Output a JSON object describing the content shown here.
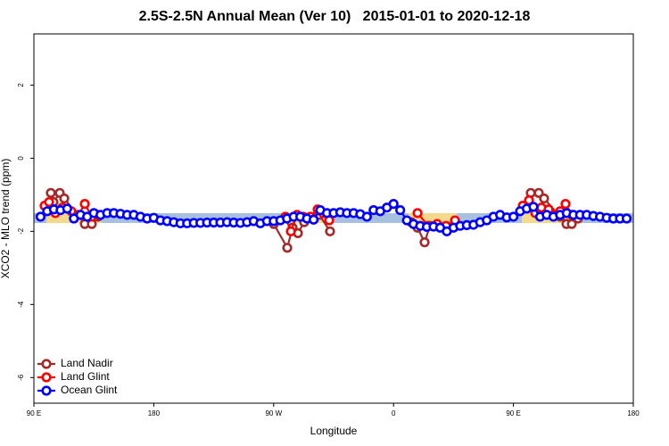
{
  "chart_data": {
    "type": "line",
    "title": "2.5S-2.5N Annual Mean (Ver 10)   2015-01-01 to 2020-12-18",
    "xlabel": "Longitude",
    "ylabel": "XCO2 - MLO trend (ppm)",
    "xlim": [
      90,
      540
    ],
    "ylim": [
      -6.7,
      3.4
    ],
    "xticks": [
      {
        "value": 90,
        "label": "90 E"
      },
      {
        "value": 180,
        "label": "180"
      },
      {
        "value": 270,
        "label": "90 W"
      },
      {
        "value": 360,
        "label": "0"
      },
      {
        "value": 450,
        "label": "90 E"
      },
      {
        "value": 540,
        "label": "180"
      }
    ],
    "yticks": [
      -6,
      -4,
      -2,
      0,
      2
    ],
    "legend": "bottom-left",
    "series": [
      {
        "name": "Land Nadir",
        "color": "#a52a2a",
        "x": [
          100,
          102.7,
          104.7,
          109.4,
          112.8,
          128.2,
          133.5,
          138.2,
          null,
          270.1,
          280.2,
          284.2,
          288.2,
          292.9,
          299.6,
          304.3,
          312.3,
          null,
          373.3,
          378,
          383.3,
          387.3,
          null,
          459.6,
          463,
          469,
          473,
          485,
          489.8,
          493.8,
          498.5
        ],
        "values": [
          -1.4,
          -0.95,
          -1.2,
          -0.95,
          -1.1,
          -1.8,
          -1.8,
          -1.6,
          null,
          -1.8,
          -2.45,
          -1.9,
          -2.05,
          -1.75,
          -1.65,
          -1.55,
          -2.0,
          null,
          -1.75,
          -1.9,
          -2.3,
          -1.85,
          null,
          -1.3,
          -0.95,
          -0.95,
          -1.1,
          -1.6,
          -1.8,
          -1.8,
          -1.65
        ]
      },
      {
        "name": "Land Glint",
        "color": "#ff0000",
        "x": [
          98,
          101.4,
          106.1,
          111.4,
          118.1,
          123.5,
          128.2,
          133.5,
          138.2,
          null,
          278.8,
          282.9,
          287.5,
          292.2,
          297.6,
          303,
          307,
          311.7,
          null,
          378,
          386,
          392.7,
          399.4,
          406.1,
          null,
          457,
          461.7,
          466.4,
          471,
          476.4,
          481.1,
          485.1,
          489.1,
          493.8
        ],
        "values": [
          -1.3,
          -1.2,
          -1.5,
          -1.35,
          -1.45,
          -1.55,
          -1.25,
          -1.6,
          -1.55,
          null,
          -1.6,
          -2.0,
          -1.55,
          -1.6,
          -1.6,
          -1.4,
          -1.5,
          -1.7,
          null,
          -1.5,
          -1.85,
          -1.8,
          -1.85,
          -1.7,
          null,
          -1.3,
          -1.15,
          -1.5,
          -1.35,
          -1.4,
          -1.55,
          -1.45,
          -1.25,
          -1.55
        ]
      },
      {
        "name": "Ocean Glint",
        "color": "#0000ff",
        "x": [
          95,
          100,
          105,
          110,
          115,
          120,
          125,
          130,
          135,
          140,
          145,
          150,
          155,
          160,
          165,
          170,
          175,
          180,
          185,
          190,
          195,
          200,
          205,
          210,
          215,
          220,
          225,
          230,
          235,
          240,
          245,
          250,
          255,
          260,
          265,
          270,
          275,
          280,
          285,
          290,
          295,
          300,
          305,
          310,
          315,
          320,
          325,
          330,
          335,
          340,
          345,
          350,
          355,
          360,
          365,
          370,
          375,
          380,
          385,
          390,
          395,
          400,
          405,
          410,
          415,
          420,
          425,
          430,
          435,
          440,
          445,
          450,
          455,
          460,
          465,
          470,
          475,
          480,
          485,
          490,
          495,
          500,
          505,
          510,
          515,
          520,
          525,
          530,
          535
        ],
        "values": [
          -1.6,
          -1.45,
          -1.4,
          -1.42,
          -1.38,
          -1.65,
          -1.55,
          -1.6,
          -1.5,
          -1.55,
          -1.5,
          -1.5,
          -1.52,
          -1.55,
          -1.55,
          -1.6,
          -1.65,
          -1.63,
          -1.7,
          -1.72,
          -1.75,
          -1.78,
          -1.78,
          -1.77,
          -1.77,
          -1.76,
          -1.76,
          -1.76,
          -1.75,
          -1.76,
          -1.77,
          -1.75,
          -1.72,
          -1.78,
          -1.72,
          -1.72,
          -1.7,
          -1.65,
          -1.6,
          -1.6,
          -1.65,
          -1.68,
          -1.42,
          -1.5,
          -1.5,
          -1.48,
          -1.5,
          -1.5,
          -1.53,
          -1.6,
          -1.42,
          -1.45,
          -1.35,
          -1.25,
          -1.42,
          -1.7,
          -1.8,
          -1.85,
          -1.88,
          -1.87,
          -1.9,
          -2.0,
          -1.9,
          -1.85,
          -1.83,
          -1.82,
          -1.75,
          -1.7,
          -1.6,
          -1.55,
          -1.62,
          -1.6,
          -1.45,
          -1.38,
          -1.33,
          -1.6,
          -1.55,
          -1.6,
          -1.55,
          -1.5,
          -1.55,
          -1.55,
          -1.55,
          -1.58,
          -1.6,
          -1.63,
          -1.65,
          -1.65,
          -1.65
        ]
      }
    ]
  }
}
